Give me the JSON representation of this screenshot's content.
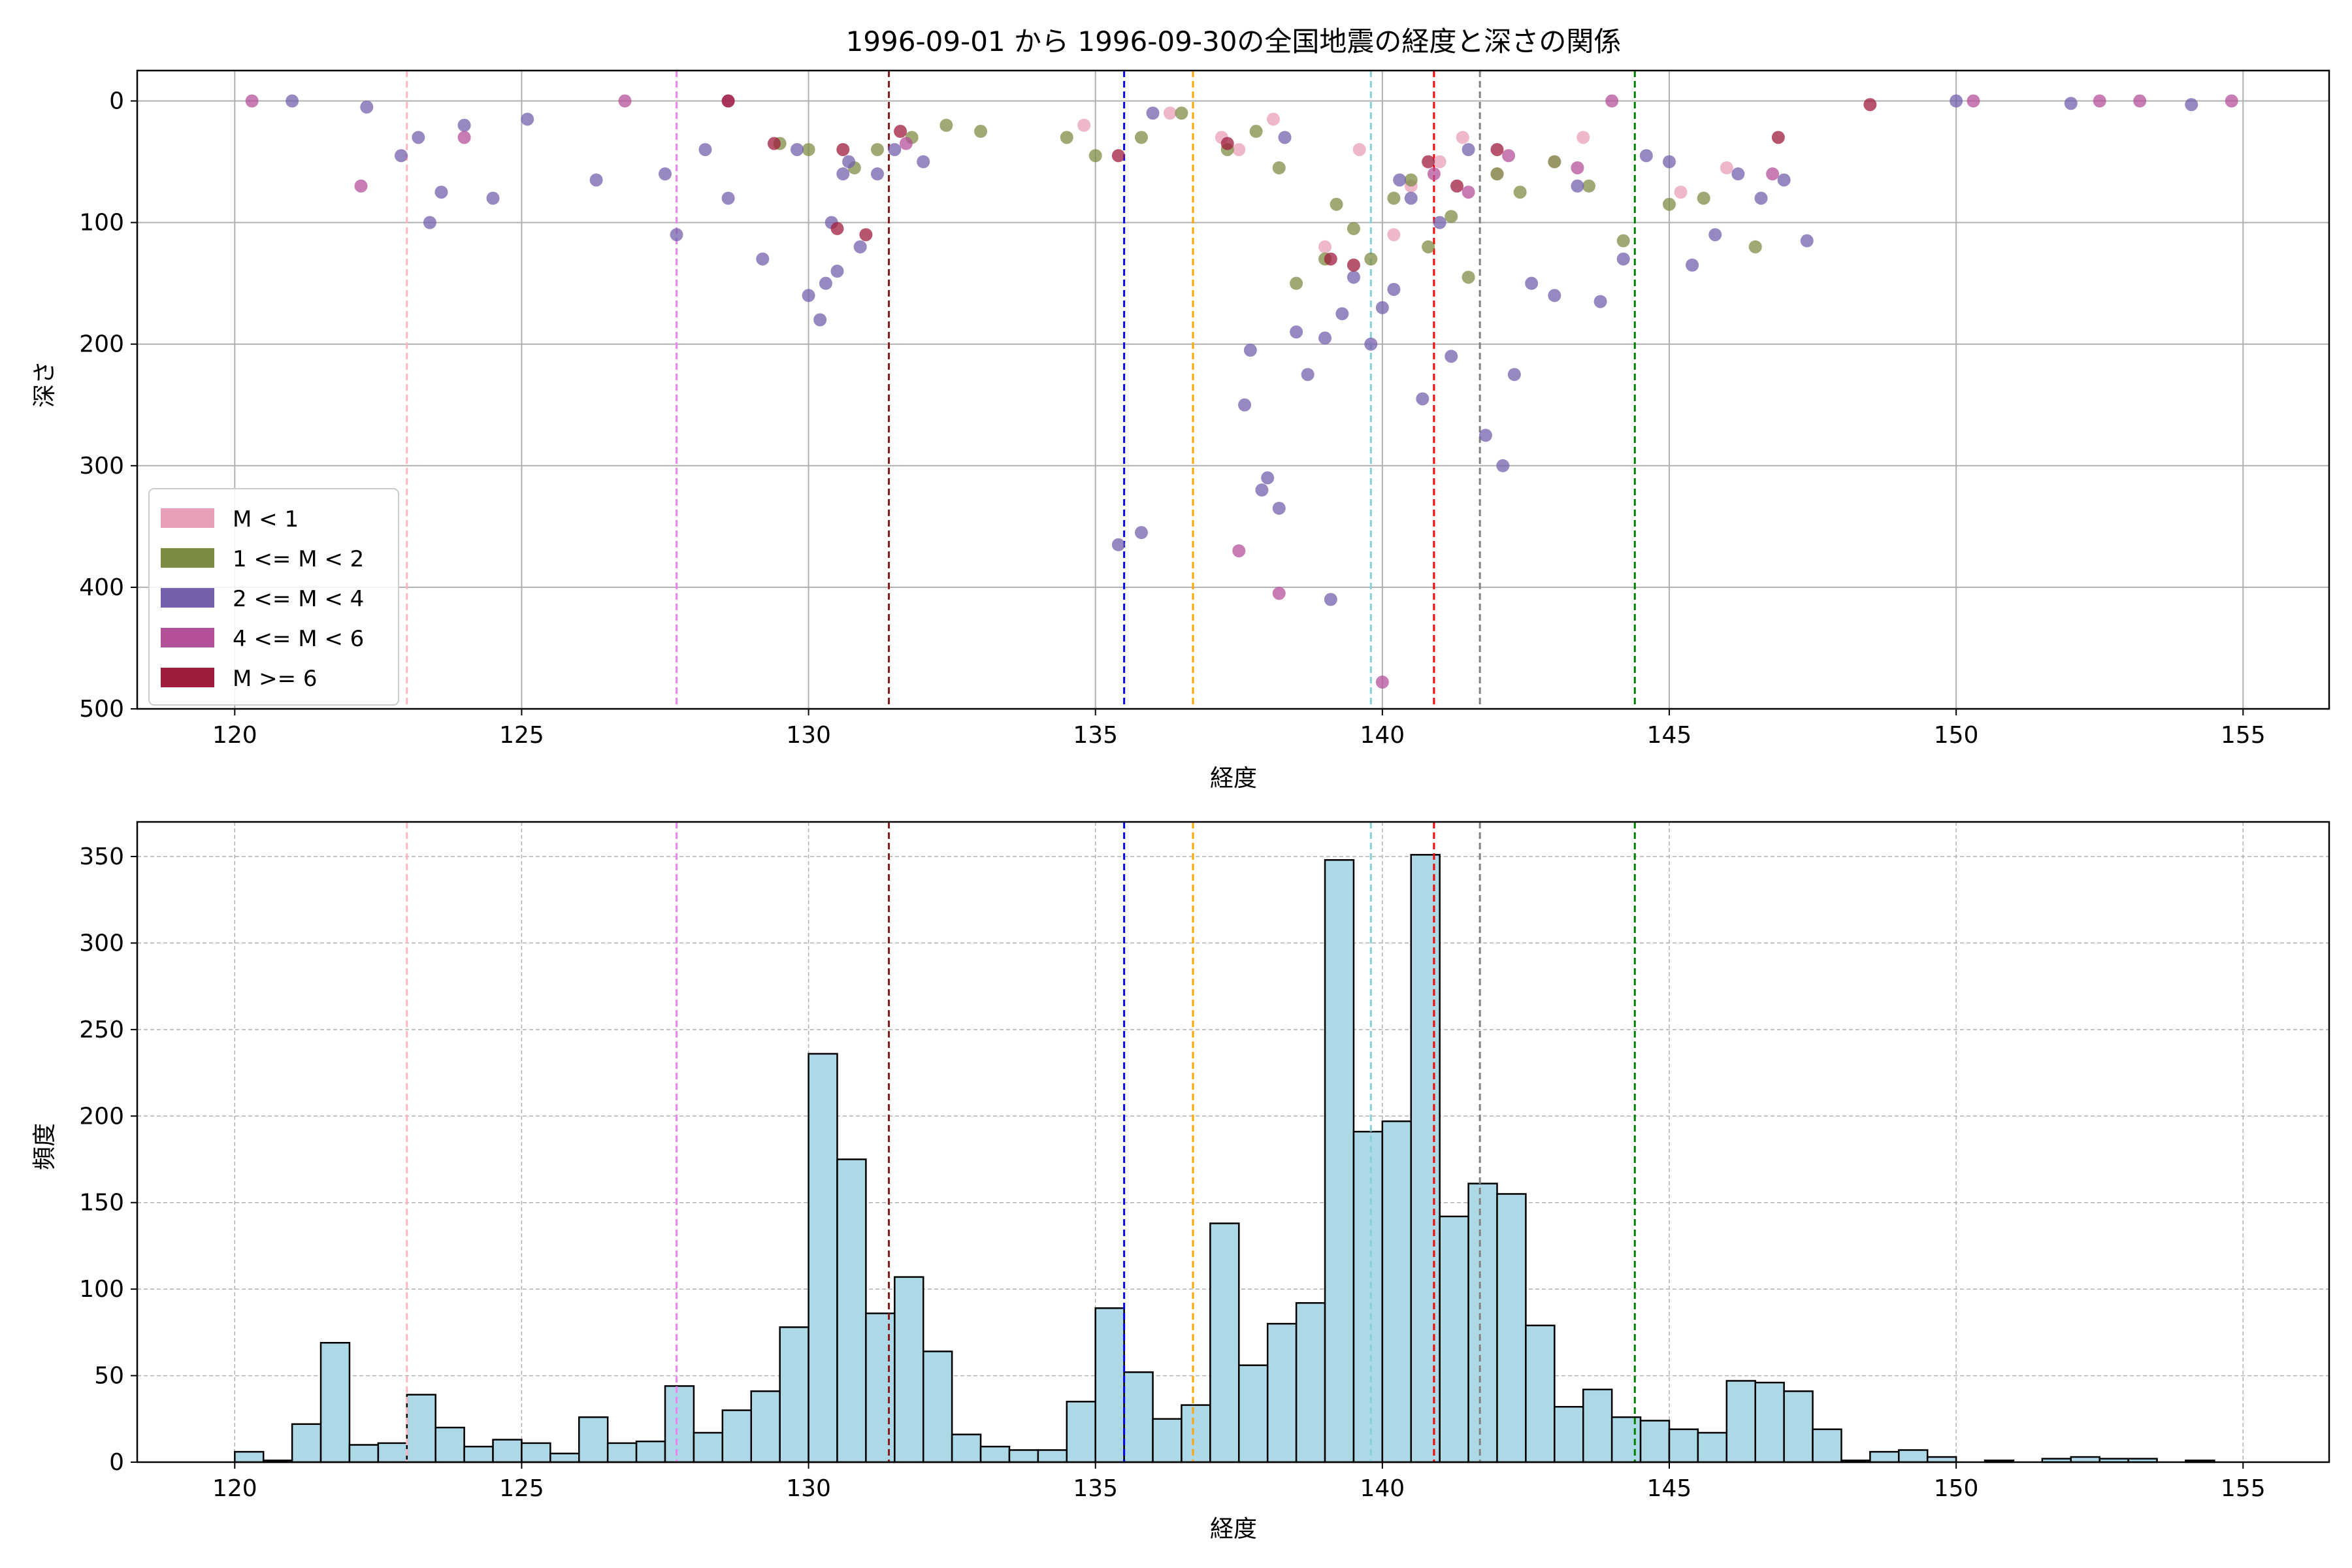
{
  "chart_data": [
    {
      "type": "scatter",
      "title": "1996-09-01 から 1996-09-30の全国地震の経度と深さの関係",
      "xlabel": "経度",
      "ylabel": "深さ",
      "xlim": [
        118.3,
        156.5
      ],
      "ylim": [
        500,
        -25
      ],
      "y_inverted": true,
      "grid": true,
      "legend_position": "lower-left",
      "x_ticks": [
        120,
        125,
        130,
        135,
        140,
        145,
        150,
        155
      ],
      "y_ticks": [
        0,
        100,
        200,
        300,
        400,
        500
      ],
      "reference_lines": [
        {
          "x": 123.0,
          "color": "#ffb6c1"
        },
        {
          "x": 127.7,
          "color": "#ee82ee"
        },
        {
          "x": 131.4,
          "color": "#8b1a1a"
        },
        {
          "x": 135.5,
          "color": "#0000ff"
        },
        {
          "x": 136.7,
          "color": "#ffa500"
        },
        {
          "x": 139.8,
          "color": "#87cedb"
        },
        {
          "x": 140.9,
          "color": "#ff0000"
        },
        {
          "x": 141.7,
          "color": "#808080"
        },
        {
          "x": 144.4,
          "color": "#008000"
        }
      ],
      "series": [
        {
          "name": "M < 1",
          "color": "#e8a0b8",
          "x": [
            134.8,
            136.3,
            137.2,
            137.5,
            138.1,
            139.0,
            139.6,
            140.2,
            140.5,
            141.0,
            141.4,
            142.0,
            143.0,
            143.5,
            145.2,
            146.0
          ],
          "y": [
            20,
            10,
            30,
            40,
            15,
            120,
            40,
            110,
            70,
            50,
            30,
            60,
            50,
            30,
            75,
            55
          ]
        },
        {
          "name": "1 <= M < 2",
          "color": "#7d8c44",
          "x": [
            129.5,
            130.0,
            130.8,
            131.2,
            131.8,
            132.4,
            133.0,
            134.5,
            135.0,
            135.8,
            136.5,
            137.3,
            137.8,
            138.2,
            138.5,
            139.0,
            139.2,
            139.5,
            139.8,
            140.2,
            140.5,
            140.8,
            141.2,
            141.5,
            142.0,
            142.4,
            143.0,
            143.6,
            144.2,
            145.0,
            145.6,
            146.5
          ],
          "y": [
            35,
            40,
            55,
            40,
            30,
            20,
            25,
            30,
            45,
            30,
            10,
            40,
            25,
            55,
            150,
            130,
            85,
            105,
            130,
            80,
            65,
            120,
            95,
            145,
            60,
            75,
            50,
            70,
            115,
            85,
            80,
            120
          ]
        },
        {
          "name": "2 <= M < 4",
          "color": "#7660ac",
          "x": [
            121.0,
            122.3,
            122.9,
            123.2,
            123.4,
            123.6,
            124.0,
            124.5,
            125.1,
            126.3,
            127.5,
            127.7,
            128.2,
            128.6,
            129.2,
            129.8,
            130.0,
            130.2,
            130.3,
            130.4,
            130.5,
            130.6,
            130.7,
            130.9,
            131.2,
            131.5,
            132.0,
            135.4,
            135.8,
            136.0,
            137.6,
            137.7,
            137.9,
            138.0,
            138.2,
            138.3,
            138.5,
            138.7,
            139.0,
            139.1,
            139.3,
            139.5,
            139.8,
            140.0,
            140.2,
            140.3,
            140.5,
            140.7,
            141.0,
            141.2,
            141.5,
            141.8,
            142.1,
            142.3,
            142.6,
            143.0,
            143.4,
            143.8,
            144.2,
            144.6,
            145.0,
            145.4,
            145.8,
            146.2,
            146.6,
            147.0,
            147.4,
            150.0,
            152.0,
            154.1
          ],
          "y": [
            0,
            5,
            45,
            30,
            100,
            75,
            20,
            80,
            15,
            65,
            60,
            110,
            40,
            80,
            130,
            40,
            160,
            180,
            150,
            100,
            140,
            60,
            50,
            120,
            60,
            40,
            50,
            365,
            355,
            10,
            250,
            205,
            320,
            310,
            335,
            30,
            190,
            225,
            195,
            410,
            175,
            145,
            200,
            170,
            155,
            65,
            80,
            245,
            100,
            210,
            40,
            275,
            300,
            225,
            150,
            160,
            70,
            165,
            130,
            45,
            50,
            135,
            110,
            60,
            80,
            65,
            115,
            0,
            2,
            3
          ]
        },
        {
          "name": "4 <= M < 6",
          "color": "#b4509a",
          "x": [
            120.3,
            122.2,
            124.0,
            126.8,
            128.6,
            131.7,
            137.5,
            138.2,
            140.0,
            140.9,
            141.5,
            142.2,
            143.4,
            144.0,
            146.8,
            150.3,
            152.5,
            153.2,
            154.8
          ],
          "y": [
            0,
            70,
            30,
            0,
            0,
            35,
            370,
            405,
            478,
            60,
            75,
            45,
            55,
            0,
            60,
            0,
            0,
            0,
            0
          ]
        },
        {
          "name": "M >= 6",
          "color": "#9e1c3c",
          "x": [
            128.6,
            129.4,
            130.5,
            130.6,
            131.0,
            131.6,
            135.4,
            137.3,
            139.1,
            139.5,
            140.8,
            141.3,
            142.0,
            146.9,
            148.5
          ],
          "y": [
            0,
            35,
            105,
            40,
            110,
            25,
            45,
            35,
            130,
            135,
            50,
            70,
            40,
            30,
            3
          ]
        }
      ]
    },
    {
      "type": "bar",
      "xlabel": "経度",
      "ylabel": "頻度",
      "xlim": [
        118.3,
        156.5
      ],
      "ylim": [
        0,
        370
      ],
      "grid": true,
      "bar_color": "#add8e6",
      "x_ticks": [
        120,
        125,
        130,
        135,
        140,
        145,
        150,
        155
      ],
      "y_ticks": [
        0,
        50,
        100,
        150,
        200,
        250,
        300,
        350
      ],
      "bin_start": 120.0,
      "bin_width": 0.5,
      "values": [
        6,
        1,
        22,
        69,
        10,
        11,
        39,
        20,
        9,
        13,
        11,
        5,
        26,
        11,
        12,
        44,
        17,
        30,
        41,
        78,
        236,
        175,
        86,
        107,
        64,
        16,
        9,
        7,
        7,
        35,
        89,
        52,
        25,
        33,
        138,
        56,
        80,
        92,
        348,
        191,
        197,
        351,
        142,
        161,
        155,
        79,
        32,
        42,
        26,
        24,
        19,
        17,
        47,
        46,
        41,
        19,
        1,
        6,
        7,
        3,
        0,
        1,
        0,
        2,
        3,
        2,
        2,
        0,
        1
      ],
      "reference_lines": [
        {
          "x": 123.0,
          "color": "#ffb6c1"
        },
        {
          "x": 127.7,
          "color": "#ee82ee"
        },
        {
          "x": 131.4,
          "color": "#8b1a1a"
        },
        {
          "x": 135.5,
          "color": "#0000ff"
        },
        {
          "x": 136.7,
          "color": "#ffa500"
        },
        {
          "x": 139.8,
          "color": "#87cedb"
        },
        {
          "x": 140.9,
          "color": "#ff0000"
        },
        {
          "x": 141.7,
          "color": "#808080"
        },
        {
          "x": 144.4,
          "color": "#008000"
        }
      ]
    }
  ]
}
